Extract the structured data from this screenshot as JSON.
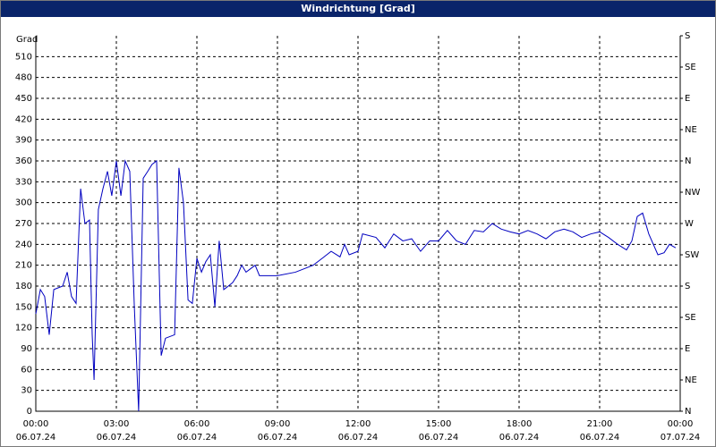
{
  "chart_data": {
    "type": "line",
    "title": "Windrichtung [Grad]",
    "y_label": "Grad",
    "xlim": [
      0,
      24
    ],
    "xticks": [
      {
        "value": 0,
        "label": "00:00"
      },
      {
        "value": 3,
        "label": "03:00"
      },
      {
        "value": 6,
        "label": "06:00"
      },
      {
        "value": 9,
        "label": "09:00"
      },
      {
        "value": 12,
        "label": "12:00"
      },
      {
        "value": 15,
        "label": "15:00"
      },
      {
        "value": 18,
        "label": "18:00"
      },
      {
        "value": 21,
        "label": "21:00"
      },
      {
        "value": 24,
        "label": "00:00"
      }
    ],
    "xtick_dates": [
      "06.07.24",
      "06.07.24",
      "06.07.24",
      "06.07.24",
      "06.07.24",
      "06.07.24",
      "06.07.24",
      "06.07.24",
      "07.07.24"
    ],
    "ylim": [
      0,
      540
    ],
    "yticks": [
      0,
      30,
      60,
      90,
      120,
      150,
      180,
      210,
      240,
      270,
      300,
      330,
      360,
      390,
      420,
      450,
      480,
      510
    ],
    "y2lim": [
      0,
      540
    ],
    "y2ticks": [
      {
        "value": 0,
        "label": "N"
      },
      {
        "value": 45,
        "label": "NE"
      },
      {
        "value": 90,
        "label": "E"
      },
      {
        "value": 135,
        "label": "SE"
      },
      {
        "value": 180,
        "label": "S"
      },
      {
        "value": 225,
        "label": "SW"
      },
      {
        "value": 270,
        "label": "W"
      },
      {
        "value": 315,
        "label": "NW"
      },
      {
        "value": 360,
        "label": "N"
      },
      {
        "value": 405,
        "label": "NE"
      },
      {
        "value": 450,
        "label": "E"
      },
      {
        "value": 495,
        "label": "SE"
      },
      {
        "value": 540,
        "label": "S"
      }
    ],
    "grid": true,
    "series": [
      {
        "color": "#0000c0",
        "x": [
          0,
          0.17,
          0.33,
          0.5,
          0.67,
          1,
          1.17,
          1.33,
          1.5,
          1.67,
          1.83,
          2,
          2.1,
          2.17,
          2.33,
          2.5,
          2.67,
          2.83,
          3,
          3.17,
          3.33,
          3.5,
          3.67,
          3.83,
          4,
          4.17,
          4.33,
          4.5,
          4.67,
          4.83,
          5.17,
          5.33,
          5.5,
          5.67,
          5.83,
          6,
          6.17,
          6.33,
          6.5,
          6.67,
          6.83,
          7,
          7.17,
          7.33,
          7.5,
          7.67,
          7.83,
          8,
          8.17,
          8.33,
          8.67,
          9,
          9.67,
          10,
          10.33,
          10.67,
          11,
          11.33,
          11.5,
          11.67,
          12,
          12.17,
          12.67,
          13,
          13.33,
          13.67,
          14,
          14.33,
          14.67,
          15,
          15.33,
          15.67,
          16,
          16.33,
          16.67,
          17,
          17.33,
          17.67,
          18,
          18.33,
          18.67,
          19,
          19.33,
          19.67,
          20,
          20.33,
          20.67,
          21,
          21.33,
          21.67,
          22,
          22.2,
          22.4,
          22.6,
          22.83,
          23.17,
          23.4,
          23.6,
          23.83
        ],
        "values": [
          140,
          175,
          165,
          110,
          175,
          180,
          200,
          165,
          155,
          320,
          270,
          275,
          110,
          45,
          290,
          320,
          345,
          310,
          360,
          310,
          360,
          345,
          150,
          0,
          335,
          345,
          355,
          360,
          80,
          105,
          110,
          350,
          300,
          160,
          155,
          220,
          200,
          215,
          225,
          150,
          245,
          175,
          180,
          185,
          195,
          210,
          200,
          205,
          210,
          195,
          195,
          195,
          200,
          205,
          210,
          220,
          230,
          222,
          240,
          225,
          230,
          255,
          250,
          235,
          255,
          245,
          248,
          230,
          245,
          245,
          260,
          245,
          240,
          260,
          258,
          270,
          262,
          258,
          255,
          260,
          255,
          248,
          258,
          262,
          258,
          250,
          255,
          258,
          250,
          240,
          232,
          245,
          280,
          285,
          255,
          225,
          228,
          240,
          235
        ]
      }
    ]
  }
}
